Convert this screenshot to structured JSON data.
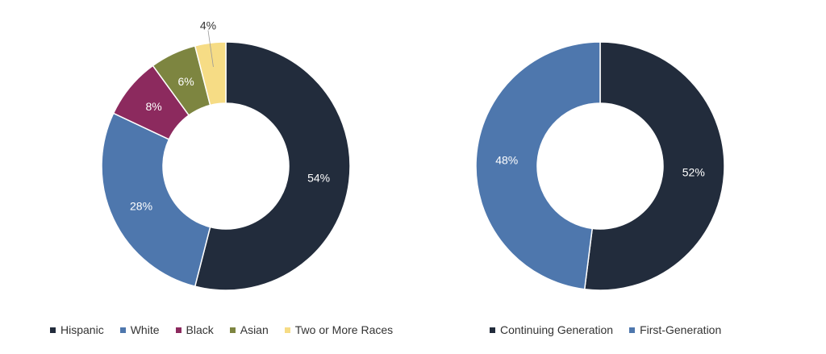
{
  "chart_data": [
    {
      "type": "pie",
      "donut": true,
      "legend_position": "bottom",
      "categories": [
        "Hispanic",
        "White",
        "Black",
        "Asian",
        "Two or More Races"
      ],
      "values": [
        54,
        28,
        8,
        6,
        4
      ],
      "labels": [
        "54%",
        "28%",
        "8%",
        "6%",
        "4%"
      ],
      "colors": [
        "#222c3c",
        "#4e77ad",
        "#8c2a5e",
        "#7d8540",
        "#f6dc85"
      ]
    },
    {
      "type": "pie",
      "donut": true,
      "legend_position": "bottom",
      "categories": [
        "Continuing Generation",
        "First-Generation"
      ],
      "values": [
        52,
        48
      ],
      "labels": [
        "52%",
        "48%"
      ],
      "colors": [
        "#222c3c",
        "#4e77ad"
      ]
    }
  ]
}
